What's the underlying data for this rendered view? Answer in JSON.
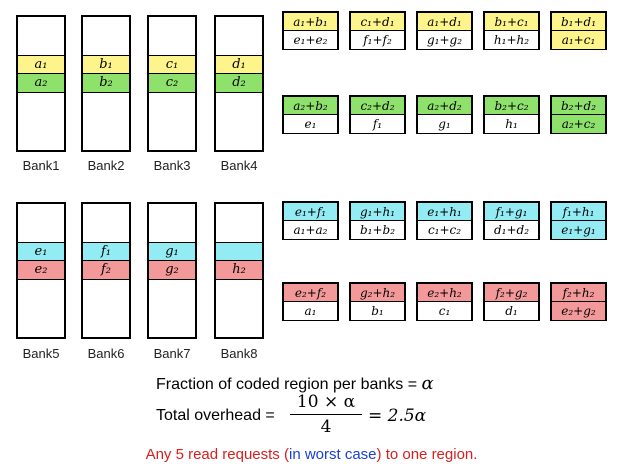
{
  "colors": {
    "yellow": "#fdf58c",
    "green": "#8ee26c",
    "cyan": "#93ecf3",
    "red": "#f3999a",
    "white": "#ffffff"
  },
  "banks": [
    {
      "label": "Bank1",
      "cells": [
        {
          "text": "a₁",
          "color": "yellow"
        },
        {
          "text": "a₂",
          "color": "green"
        }
      ]
    },
    {
      "label": "Bank2",
      "cells": [
        {
          "text": "b₁",
          "color": "yellow"
        },
        {
          "text": "b₂",
          "color": "green"
        }
      ]
    },
    {
      "label": "Bank3",
      "cells": [
        {
          "text": "c₁",
          "color": "yellow"
        },
        {
          "text": "c₂",
          "color": "green"
        }
      ]
    },
    {
      "label": "Bank4",
      "cells": [
        {
          "text": "d₁",
          "color": "yellow"
        },
        {
          "text": "d₂",
          "color": "green"
        }
      ]
    },
    {
      "label": "Bank5",
      "cells": [
        {
          "text": "e₁",
          "color": "cyan"
        },
        {
          "text": "e₂",
          "color": "red"
        }
      ]
    },
    {
      "label": "Bank6",
      "cells": [
        {
          "text": "f₁",
          "color": "cyan"
        },
        {
          "text": "f₂",
          "color": "red"
        }
      ]
    },
    {
      "label": "Bank7",
      "cells": [
        {
          "text": "g₁",
          "color": "cyan"
        },
        {
          "text": "g₂",
          "color": "red"
        }
      ]
    },
    {
      "label": "Bank8",
      "cells": [
        {
          "text": "",
          "color": "cyan"
        },
        {
          "text": "h₂",
          "color": "red"
        }
      ]
    }
  ],
  "coded_rows": [
    [
      {
        "top": "a₁+b₁",
        "top_color": "yellow",
        "bottom": "e₁+e₂",
        "bottom_color": "white"
      },
      {
        "top": "c₁+d₁",
        "top_color": "yellow",
        "bottom": "f₁+f₂",
        "bottom_color": "white"
      },
      {
        "top": "a₁+d₁",
        "top_color": "yellow",
        "bottom": "g₁+g₂",
        "bottom_color": "white"
      },
      {
        "top": "b₁+c₁",
        "top_color": "yellow",
        "bottom": "h₁+h₂",
        "bottom_color": "white"
      },
      {
        "top": "b₁+d₁",
        "top_color": "yellow",
        "bottom": "a₁+c₁",
        "bottom_color": "yellow"
      }
    ],
    [
      {
        "top": "a₂+b₂",
        "top_color": "green",
        "bottom": "e₁",
        "bottom_color": "white"
      },
      {
        "top": "c₂+d₂",
        "top_color": "green",
        "bottom": "f₁",
        "bottom_color": "white"
      },
      {
        "top": "a₂+d₂",
        "top_color": "green",
        "bottom": "g₁",
        "bottom_color": "white"
      },
      {
        "top": "b₂+c₂",
        "top_color": "green",
        "bottom": "h₁",
        "bottom_color": "white"
      },
      {
        "top": "b₂+d₂",
        "top_color": "green",
        "bottom": "a₂+c₂",
        "bottom_color": "green"
      }
    ],
    [
      {
        "top": "e₁+f₁",
        "top_color": "cyan",
        "bottom": "a₁+a₂",
        "bottom_color": "white"
      },
      {
        "top": "g₁+h₁",
        "top_color": "cyan",
        "bottom": "b₁+b₂",
        "bottom_color": "white"
      },
      {
        "top": "e₁+h₁",
        "top_color": "cyan",
        "bottom": "c₁+c₂",
        "bottom_color": "white"
      },
      {
        "top": "f₁+g₁",
        "top_color": "cyan",
        "bottom": "d₁+d₂",
        "bottom_color": "white"
      },
      {
        "top": "f₁+h₁",
        "top_color": "cyan",
        "bottom": "e₁+g₁",
        "bottom_color": "cyan"
      }
    ],
    [
      {
        "top": "e₂+f₂",
        "top_color": "red",
        "bottom": "a₁",
        "bottom_color": "white"
      },
      {
        "top": "g₂+h₂",
        "top_color": "red",
        "bottom": "b₁",
        "bottom_color": "white"
      },
      {
        "top": "e₂+h₂",
        "top_color": "red",
        "bottom": "c₁",
        "bottom_color": "white"
      },
      {
        "top": "f₂+g₂",
        "top_color": "red",
        "bottom": "d₁",
        "bottom_color": "white"
      },
      {
        "top": "f₂+h₂",
        "top_color": "red",
        "bottom": "e₂+g₂",
        "bottom_color": "red"
      }
    ]
  ],
  "formulas": {
    "fraction_label": "Fraction of coded region per banks = ",
    "fraction_symbol": "α",
    "overhead_label": "Total overhead = ",
    "overhead_numerator": "10 × α",
    "overhead_denominator": "4",
    "overhead_result": "= 2.5α"
  },
  "footer": {
    "part1": "Any 5 read requests (",
    "part2": "in worst case",
    "part3": ") to one region."
  }
}
